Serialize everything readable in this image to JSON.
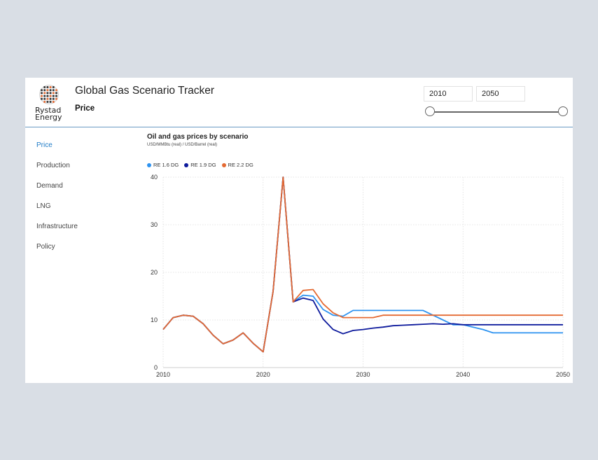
{
  "app": {
    "title": "Global Gas Scenario Tracker",
    "page": "Price",
    "logo_text": "Rystad\nEnergy"
  },
  "filter": {
    "start_year": "2010",
    "end_year": "2050"
  },
  "nav": {
    "items": [
      {
        "label": "Price",
        "active": true
      },
      {
        "label": "Production",
        "active": false
      },
      {
        "label": "Demand",
        "active": false
      },
      {
        "label": "LNG",
        "active": false
      },
      {
        "label": "Infrastructure",
        "active": false
      },
      {
        "label": "Policy",
        "active": false
      }
    ]
  },
  "colors": {
    "accent": "#1d7ac6",
    "series_16": "#2e93f0",
    "series_19": "#0d1a9c",
    "series_22": "#e46a33"
  },
  "chart_data": {
    "type": "line",
    "title": "Oil and gas prices by scenario",
    "subtitle": "USD/MMBtu (real) / USD/Barrel (real)",
    "xlabel": "",
    "ylabel": "",
    "xlim": [
      2010,
      2050
    ],
    "ylim": [
      0,
      40
    ],
    "x_ticks": [
      "2010",
      "2020",
      "2030",
      "2040",
      "2050"
    ],
    "y_ticks": [
      "0",
      "10",
      "20",
      "30",
      "40"
    ],
    "grid": true,
    "legend_position": "top-left",
    "x": [
      2010,
      2011,
      2012,
      2013,
      2014,
      2015,
      2016,
      2017,
      2018,
      2019,
      2020,
      2021,
      2022,
      2023,
      2024,
      2025,
      2026,
      2027,
      2028,
      2029,
      2030,
      2031,
      2032,
      2033,
      2034,
      2035,
      2036,
      2037,
      2038,
      2039,
      2040,
      2041,
      2042,
      2043,
      2044,
      2045,
      2046,
      2047,
      2048,
      2049,
      2050
    ],
    "series": [
      {
        "name": "RE 1.6 DG",
        "color": "#2e93f0",
        "values": [
          8,
          10.5,
          11,
          10.8,
          9.2,
          6.8,
          5,
          5.8,
          7.3,
          5.1,
          3.3,
          16,
          40,
          13.8,
          15.2,
          15,
          12.2,
          11,
          10.8,
          12,
          12,
          12,
          12,
          12,
          12,
          12,
          12,
          11,
          10,
          9,
          9,
          8.5,
          8,
          7.3,
          7.3,
          7.3,
          7.3,
          7.3,
          7.3,
          7.3,
          7.3
        ]
      },
      {
        "name": "RE 1.9 DG",
        "color": "#0d1a9c",
        "values": [
          8,
          10.5,
          11,
          10.8,
          9.2,
          6.8,
          5,
          5.8,
          7.3,
          5.1,
          3.3,
          16,
          40,
          13.8,
          14.6,
          14.1,
          10.2,
          8,
          7.1,
          7.8,
          8,
          8.3,
          8.5,
          8.8,
          8.9,
          9,
          9.1,
          9.2,
          9.1,
          9.2,
          9,
          9,
          9,
          9,
          9,
          9,
          9,
          9,
          9,
          9,
          9
        ]
      },
      {
        "name": "RE 2.2 DG",
        "color": "#e46a33",
        "values": [
          8,
          10.5,
          11,
          10.8,
          9.2,
          6.8,
          5,
          5.8,
          7.3,
          5.1,
          3.3,
          16,
          40,
          13.8,
          16.2,
          16.4,
          13.4,
          11.5,
          10.5,
          10.5,
          10.5,
          10.5,
          11,
          11,
          11,
          11,
          11,
          11,
          11,
          11,
          11,
          11,
          11,
          11,
          11,
          11,
          11,
          11,
          11,
          11,
          11
        ]
      }
    ]
  }
}
